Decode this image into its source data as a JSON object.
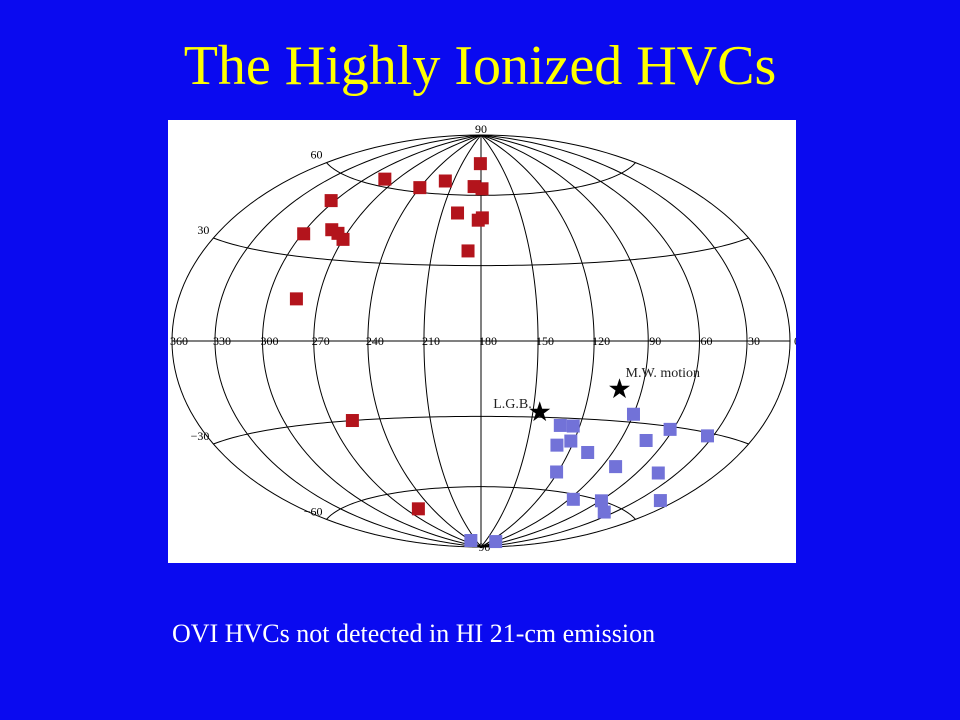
{
  "title": "The Highly Ionized HVCs",
  "caption": "OVI HVCs not detected in HI 21-cm emission",
  "chart_data": {
    "type": "scatter",
    "projection": "aitoff",
    "xlim": [
      360,
      0
    ],
    "ylim": [
      -90,
      90
    ],
    "xticks": [
      360,
      330,
      300,
      270,
      240,
      210,
      180,
      150,
      120,
      90,
      60,
      30,
      0
    ],
    "yticks": [
      90,
      60,
      30,
      {
        "value": 0,
        "label": ""
      },
      {
        "value": -30,
        "label": "−30"
      },
      {
        "value": -60,
        "label": "−60"
      },
      {
        "value": -90,
        "label": "−90"
      }
    ],
    "grid": true,
    "series": [
      {
        "color": "#b3141c",
        "x": [
          181,
          282,
          240,
          219,
          187,
          179,
          303,
          198,
          179,
          182,
          299,
          282,
          276,
          270,
          188,
          283,
          257,
          256
        ],
        "y": [
          75,
          63,
          62,
          66,
          64,
          63,
          51,
          52,
          50,
          49,
          38,
          41,
          40,
          38,
          36,
          15,
          -30,
          -68
        ]
      },
      {
        "color": "#7272d8",
        "x": [
          90,
          132,
          124,
          62,
          34,
          73,
          130,
          122,
          107,
          80,
          121,
          44,
          86,
          59,
          12,
          39,
          238,
          91
        ],
        "y": [
          -27,
          -33,
          -33,
          -31,
          -31,
          -36,
          -41,
          -39,
          -43,
          -47,
          -52,
          -46,
          -62,
          -60,
          -53,
          -63,
          -86,
          -86
        ]
      }
    ],
    "annotations": [
      {
        "text": "L.G.B.",
        "x": 146,
        "y": -28
      },
      {
        "text": "M.W. motion",
        "x": 103,
        "y": -18
      }
    ]
  }
}
